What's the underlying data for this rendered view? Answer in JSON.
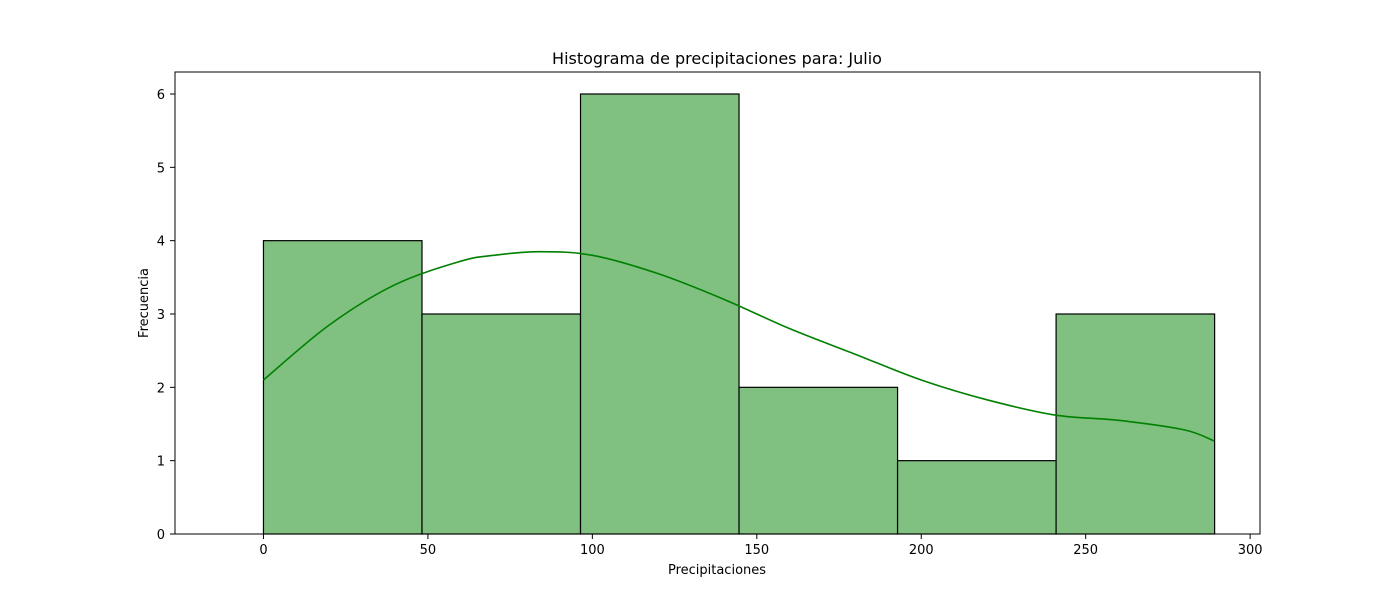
{
  "chart_data": {
    "type": "bar",
    "title": "Histograma de precipitaciones para: Julio",
    "xlabel": "Precipitaciones",
    "ylabel": "Frecuencia",
    "bins": [
      {
        "start": 0,
        "end": 48.2,
        "count": 4
      },
      {
        "start": 48.2,
        "end": 96.4,
        "count": 3
      },
      {
        "start": 96.4,
        "end": 144.6,
        "count": 6
      },
      {
        "start": 144.6,
        "end": 192.8,
        "count": 2
      },
      {
        "start": 192.8,
        "end": 241.0,
        "count": 1
      },
      {
        "start": 241.0,
        "end": 289.2,
        "count": 3
      }
    ],
    "kde": {
      "x": [
        0,
        20,
        40,
        60,
        70,
        84,
        100,
        120,
        140,
        160,
        180,
        200,
        220,
        241,
        260,
        280,
        289
      ],
      "y": [
        2.1,
        2.85,
        3.4,
        3.72,
        3.8,
        3.85,
        3.8,
        3.55,
        3.2,
        2.8,
        2.45,
        2.1,
        1.83,
        1.62,
        1.55,
        1.42,
        1.27
      ]
    },
    "xlim": [
      -26.9,
      303.0
    ],
    "ylim": [
      0,
      6.3
    ],
    "xticks": [
      0,
      50,
      100,
      150,
      200,
      250,
      300
    ],
    "yticks": [
      0,
      1,
      2,
      3,
      4,
      5,
      6
    ],
    "colors": {
      "bar_fill": "#80c080",
      "bar_edge": "#000000",
      "kde_line": "#008000"
    },
    "grid": false,
    "legend": "none"
  }
}
